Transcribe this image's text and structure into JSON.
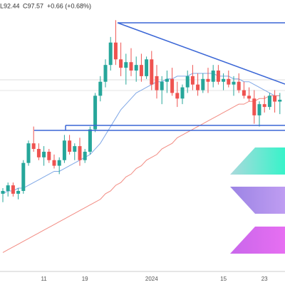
{
  "chart_data": {
    "type": "candlestick",
    "readout": [
      "L92.44",
      "C97.57",
      "+0.66 (+0.68%)"
    ],
    "categories": [
      null,
      null,
      null,
      null,
      null,
      null,
      null,
      null,
      "11",
      null,
      null,
      null,
      null,
      null,
      null,
      null,
      "19",
      null,
      null,
      null,
      null,
      null,
      null,
      null,
      null,
      null,
      null,
      null,
      null,
      "2024",
      null,
      null,
      null,
      null,
      null,
      null,
      null,
      null,
      null,
      null,
      null,
      null,
      null,
      "15",
      null,
      null,
      null,
      null,
      null,
      null,
      null,
      "23",
      null,
      null,
      null
    ],
    "open": [
      64,
      65,
      67,
      64,
      65,
      75,
      82,
      80,
      77,
      79,
      76,
      74,
      76,
      83,
      79,
      81,
      76,
      79,
      87,
      99,
      104,
      110,
      118,
      112,
      109,
      111,
      108,
      110,
      106,
      112,
      106,
      101,
      104,
      105,
      100,
      98,
      102,
      106,
      103,
      101,
      105,
      104,
      108,
      104,
      105,
      103,
      104,
      101,
      99,
      98,
      92,
      96,
      95,
      99,
      96.91
    ],
    "high": [
      66,
      68,
      68,
      66,
      76,
      83,
      88,
      82,
      81,
      80,
      78,
      77,
      85,
      85,
      82,
      84,
      80,
      88,
      100,
      106,
      112,
      120,
      126,
      118,
      114,
      116,
      113,
      114,
      113,
      115,
      110,
      106,
      108,
      109,
      104,
      103,
      108,
      110,
      107,
      107,
      109,
      110,
      110,
      107,
      108,
      106,
      107,
      104,
      102,
      101,
      97,
      99,
      100,
      101,
      100
    ],
    "low": [
      61,
      63,
      63,
      62,
      64,
      74,
      79,
      76,
      74,
      75,
      73,
      71,
      75,
      78,
      76,
      74,
      75,
      78,
      86,
      97,
      102,
      108,
      110,
      106,
      103,
      106,
      104,
      104,
      105,
      101,
      98,
      96,
      100,
      99,
      95,
      96,
      100,
      101,
      99,
      100,
      100,
      102,
      103,
      101,
      102,
      99,
      100,
      98,
      97,
      89,
      88,
      93,
      94,
      93,
      92.44
    ],
    "close": [
      65,
      67,
      64,
      65,
      75,
      82,
      80,
      77,
      79,
      76,
      74,
      76,
      83,
      79,
      81,
      76,
      79,
      87,
      99,
      104,
      110,
      118,
      112,
      109,
      111,
      108,
      110,
      106,
      112,
      103,
      101,
      104,
      105,
      100,
      98,
      102,
      106,
      103,
      101,
      105,
      104,
      108,
      104,
      105,
      103,
      104,
      101,
      99,
      98,
      92,
      96,
      95,
      99,
      96.91,
      97.57
    ],
    "up_color": "#26a69a",
    "down_color": "#ef5350",
    "overlays": [
      {
        "color": "#7fa7e6",
        "values": [
          64,
          65,
          65,
          66,
          66,
          67,
          68,
          69,
          70,
          71,
          72,
          72,
          73,
          74,
          75,
          76,
          77,
          78,
          80,
          82,
          85,
          88,
          91,
          94,
          96,
          98,
          100,
          101,
          102,
          103,
          104,
          104,
          105,
          105,
          106,
          106,
          106,
          107,
          107,
          107,
          107,
          107,
          106,
          106,
          106,
          105,
          105,
          104,
          104,
          103,
          102,
          101,
          100,
          99,
          99
        ]
      },
      {
        "color": "#f28b82",
        "values": [
          43,
          44,
          45,
          46,
          47,
          48,
          49,
          50,
          51,
          52,
          53,
          54,
          55,
          56,
          57,
          58,
          59,
          60,
          61,
          62,
          64,
          65,
          67,
          68,
          70,
          71,
          73,
          74,
          76,
          77,
          78,
          80,
          81,
          82,
          84,
          85,
          86,
          87,
          88,
          89,
          90,
          91,
          92,
          93,
          94,
          95,
          96,
          96,
          97,
          97,
          98,
          98,
          99,
          99,
          99
        ]
      }
    ],
    "ylim": [
      31.4,
      133.2
    ]
  }
}
